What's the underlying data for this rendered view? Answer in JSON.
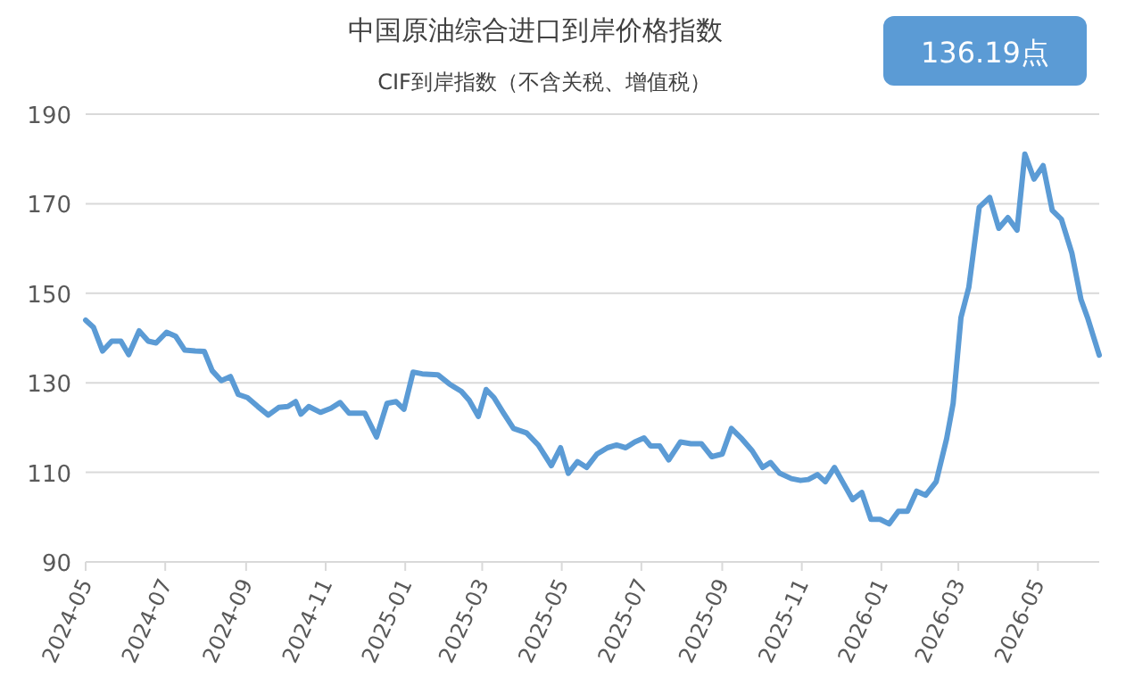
{
  "chart_data": {
    "type": "line",
    "title": "中国原油综合进口到岸价格指数",
    "subtitle": "CIF到岸指数（不含关税、增值税）",
    "annotations": [
      "136.19点"
    ],
    "x": [
      "2024-05-01",
      "2024-05-07",
      "2024-05-14",
      "2024-05-21",
      "2024-05-28",
      "2024-06-03",
      "2024-06-11",
      "2024-06-18",
      "2024-06-24",
      "2024-07-02",
      "2024-07-09",
      "2024-07-16",
      "2024-07-24",
      "2024-07-31",
      "2024-08-06",
      "2024-08-13",
      "2024-08-20",
      "2024-08-26",
      "2024-09-02",
      "2024-09-10",
      "2024-09-18",
      "2024-09-26",
      "2024-10-03",
      "2024-10-09",
      "2024-10-13",
      "2024-10-19",
      "2024-10-28",
      "2024-11-05",
      "2024-11-12",
      "2024-11-19",
      "2024-11-25",
      "2024-12-01",
      "2024-12-10",
      "2024-12-18",
      "2024-12-25",
      "2024-12-31",
      "2025-01-07",
      "2025-01-14",
      "2025-01-26",
      "2025-02-04",
      "2025-02-13",
      "2025-02-19",
      "2025-02-26",
      "2025-03-04",
      "2025-03-10",
      "2025-03-17",
      "2025-03-25",
      "2025-04-04",
      "2025-04-13",
      "2025-04-23",
      "2025-04-30",
      "2025-05-06",
      "2025-05-13",
      "2025-05-20",
      "2025-05-28",
      "2025-06-05",
      "2025-06-12",
      "2025-06-19",
      "2025-06-26",
      "2025-07-03",
      "2025-07-08",
      "2025-07-15",
      "2025-07-22",
      "2025-07-31",
      "2025-08-08",
      "2025-08-16",
      "2025-08-24",
      "2025-09-01",
      "2025-09-08",
      "2025-09-16",
      "2025-09-24",
      "2025-10-02",
      "2025-10-08",
      "2025-10-15",
      "2025-10-24",
      "2025-10-31",
      "2025-11-06",
      "2025-11-13",
      "2025-11-19",
      "2025-11-26",
      "2025-12-03",
      "2025-12-10",
      "2025-12-17",
      "2025-12-24",
      "2025-12-31",
      "2026-01-07",
      "2026-01-14",
      "2026-01-21",
      "2026-01-28",
      "2026-02-04",
      "2026-02-12",
      "2026-02-20",
      "2026-02-25",
      "2026-03-03",
      "2026-03-09",
      "2026-03-17",
      "2026-03-25",
      "2026-04-01",
      "2026-04-08",
      "2026-04-15",
      "2026-04-21",
      "2026-04-28",
      "2026-05-05",
      "2026-05-12",
      "2026-05-19",
      "2026-05-27",
      "2026-06-03",
      "2026-06-08",
      "2026-06-17"
    ],
    "series": [
      {
        "color": "#5b9bd5",
        "values": [
          144.0,
          142.4,
          137.1,
          139.3,
          139.3,
          136.3,
          141.6,
          139.3,
          138.9,
          141.3,
          140.4,
          137.3,
          137.1,
          137.0,
          132.7,
          130.5,
          131.4,
          127.4,
          126.7,
          124.7,
          122.8,
          124.5,
          124.7,
          125.8,
          123.0,
          124.7,
          123.4,
          124.3,
          125.6,
          123.2,
          123.2,
          123.2,
          117.9,
          125.4,
          125.8,
          124.1,
          132.4,
          132.0,
          131.8,
          129.7,
          128.1,
          126.1,
          122.5,
          128.5,
          126.7,
          123.4,
          119.8,
          118.8,
          116.1,
          111.5,
          115.5,
          109.8,
          112.4,
          111.1,
          114.1,
          115.5,
          116.1,
          115.5,
          116.8,
          117.7,
          115.9,
          115.9,
          112.8,
          116.8,
          116.4,
          116.4,
          113.5,
          114.1,
          119.8,
          117.5,
          114.8,
          111.1,
          112.2,
          109.8,
          108.6,
          108.2,
          108.4,
          109.5,
          107.9,
          111.1,
          107.5,
          103.9,
          105.5,
          99.5,
          99.5,
          98.5,
          101.3,
          101.3,
          105.8,
          104.9,
          107.9,
          117.5,
          125.4,
          144.6,
          151.3,
          169.2,
          171.4,
          164.5,
          166.9,
          164.1,
          181.1,
          175.5,
          178.5,
          168.5,
          166.5,
          159.0,
          148.6,
          144.6,
          136.19
        ]
      }
    ],
    "xlim": [
      "2024-05-01",
      "2026-06-17"
    ],
    "xticks": [
      "2024-05",
      "2024-07",
      "2024-09",
      "2024-11",
      "2025-01",
      "2025-03",
      "2025-05",
      "2025-07",
      "2025-09",
      "2025-11",
      "2026-01",
      "2026-03",
      "2026-05"
    ],
    "ylim": [
      90,
      190
    ],
    "yticks": [
      90,
      110,
      130,
      150,
      170,
      190
    ],
    "grid": "y"
  }
}
